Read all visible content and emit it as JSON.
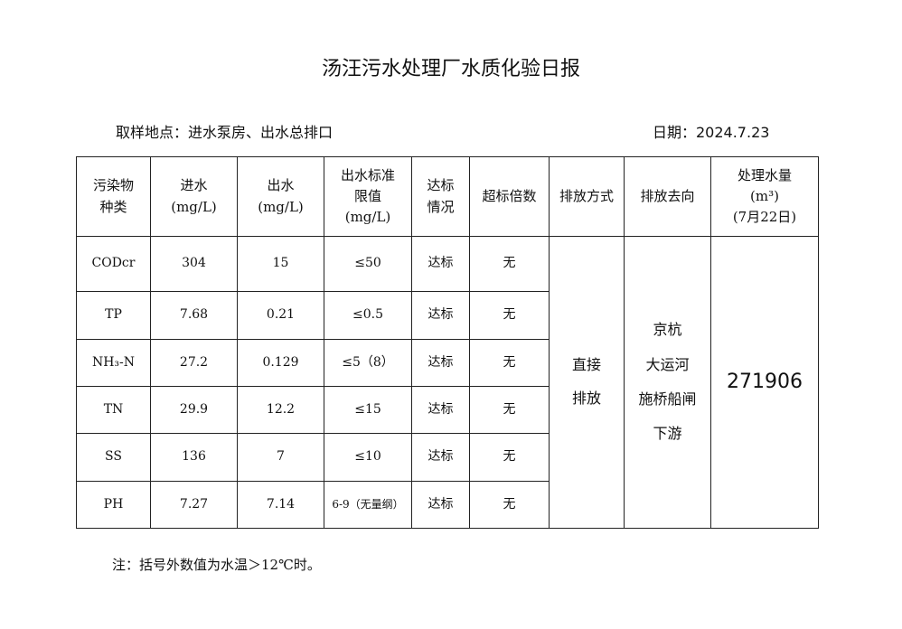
{
  "title": "汤汪污水处理厂水质化验日报",
  "sampling_location": "取样地点：进水泵房、出水总排口",
  "date": "日期：2024.7.23",
  "headers": {
    "pollutant": [
      "污染物",
      "种类"
    ],
    "inflow": [
      "进水",
      "(mg/L)"
    ],
    "outflow": [
      "出水",
      "(mg/L)"
    ],
    "limit": [
      "出水标准",
      "限值",
      "(mg/L)"
    ],
    "status": [
      "达标",
      "情况"
    ],
    "exceed": "超标倍数",
    "discharge_method": "排放方式",
    "discharge_dest": "排放去向",
    "volume": [
      "处理水量",
      "(m³)",
      "(7月22日)"
    ]
  },
  "rows": [
    {
      "name": "CODcr",
      "in": "304",
      "out": "15",
      "limit": "≤50",
      "status": "达标",
      "exceed": "无"
    },
    {
      "name": "TP",
      "in": "7.68",
      "out": "0.21",
      "limit": "≤0.5",
      "status": "达标",
      "exceed": "无"
    },
    {
      "name": "NH₃-N",
      "in": "27.2",
      "out": "0.129",
      "limit": "≤5（8）",
      "status": "达标",
      "exceed": "无"
    },
    {
      "name": "TN",
      "in": "29.9",
      "out": "12.2",
      "limit": "≤15",
      "status": "达标",
      "exceed": "无"
    },
    {
      "name": "SS",
      "in": "136",
      "out": "7",
      "limit": "≤10",
      "status": "达标",
      "exceed": "无"
    },
    {
      "name": "PH",
      "in": "7.27",
      "out": "7.14",
      "limit": "6-9（无量纲）",
      "status": "达标",
      "exceed": "无"
    }
  ],
  "discharge_method": [
    "直接",
    "排放"
  ],
  "discharge_dest": [
    "京杭",
    "大运河",
    "施桥船闸",
    "下游"
  ],
  "volume": "271906",
  "note": "注：括号外数值为水温＞12℃时。"
}
